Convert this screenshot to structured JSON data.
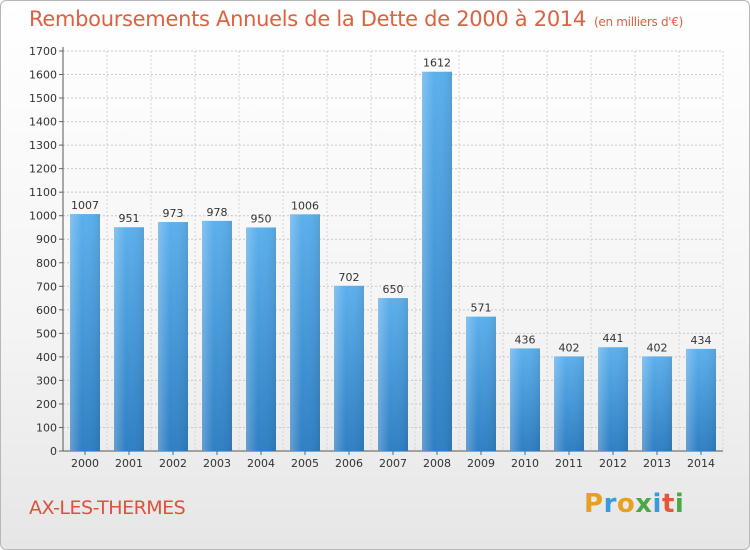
{
  "header": {
    "title": "Remboursements Annuels de la Dette de 2000 à 2014",
    "unit": "(en milliers d'€)"
  },
  "footer": {
    "commune": "AX-LES-THERMES",
    "logo": "Proxiti"
  },
  "colors": {
    "bar": "#4a9fe0",
    "title": "#e06040",
    "grid": "#c8c8c8"
  },
  "chart_data": {
    "type": "bar",
    "title": "Remboursements Annuels de la Dette de 2000 à 2014",
    "subtitle": "(en milliers d'€)",
    "categories": [
      "2000",
      "2001",
      "2002",
      "2003",
      "2004",
      "2005",
      "2006",
      "2007",
      "2008",
      "2009",
      "2010",
      "2011",
      "2012",
      "2013",
      "2014"
    ],
    "values": [
      1007,
      951,
      973,
      978,
      950,
      1006,
      702,
      650,
      1612,
      571,
      436,
      402,
      441,
      402,
      434
    ],
    "ylim": [
      0,
      1700
    ],
    "yticks": [
      0,
      100,
      200,
      300,
      400,
      500,
      600,
      700,
      800,
      900,
      1000,
      1100,
      1200,
      1300,
      1400,
      1500,
      1600,
      1700
    ],
    "grid": true,
    "legend": "none",
    "xlabel": "",
    "ylabel": ""
  }
}
